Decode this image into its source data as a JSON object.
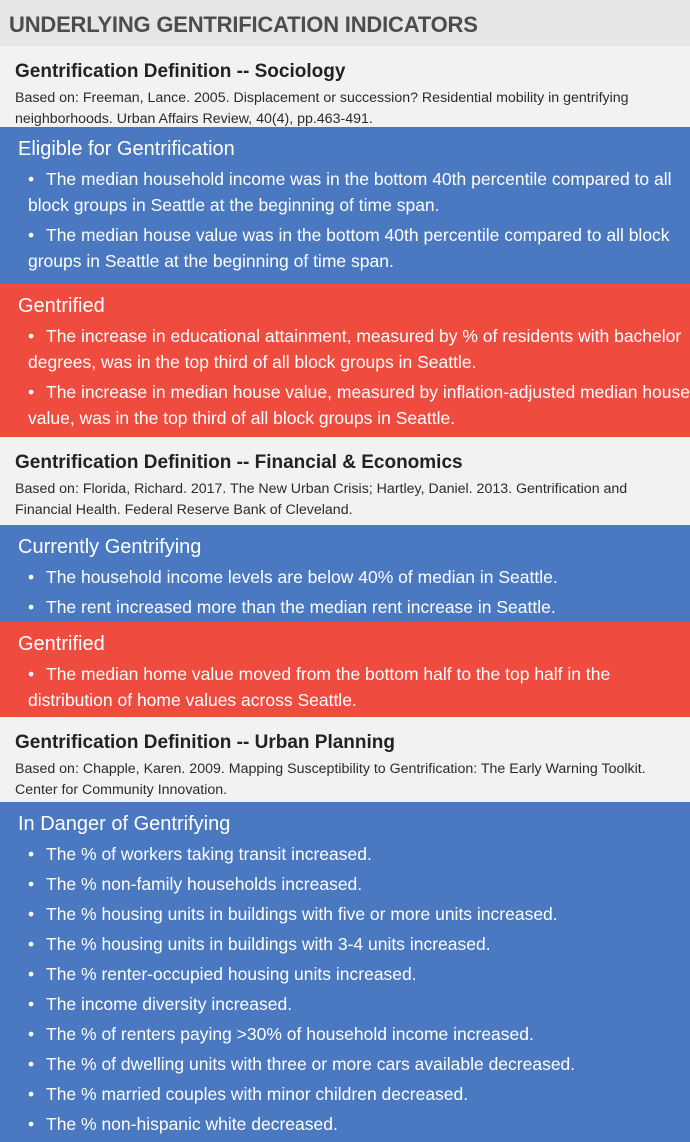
{
  "title": "UNDERLYING GENTRIFICATION INDICATORS",
  "colors": {
    "header_band": "#e6e6e6",
    "definition_band": "#f2f2f2",
    "blue_panel": "#4a79c2",
    "red_panel": "#ef4b3f"
  },
  "definitions": [
    {
      "title": "Gentrification Definition -- Sociology",
      "source": "Based on: Freeman, Lance. 2005. Displacement or succession? Residential mobility in gentrifying neighborhoods. Urban Affairs Review, 40(4), pp.463-491.",
      "panels": [
        {
          "title": "Eligible for Gentrification",
          "color": "blue",
          "bullet": "•",
          "items": [
            "The median household income was in the bottom 40th percentile compared to all block groups in Seattle at the beginning of time span.",
            "The median house value was in the bottom 40th percentile compared to all block groups in Seattle at the beginning of time span."
          ]
        },
        {
          "title": "Gentrified",
          "color": "red",
          "bullet": "•",
          "items": [
            "The increase in educational attainment, measured by % of residents with bachelor degrees, was in the top third of all block groups in Seattle.",
            "The increase in median house value, measured by inflation-adjusted median house value, was in the top third of all block groups in Seattle."
          ]
        }
      ]
    },
    {
      "title": "Gentrification Definition -- Financial & Economics",
      "source": "Based on: Florida, Richard. 2017. The New Urban Crisis; Hartley, Daniel. 2013. Gentrification and Financial Health. Federal Reserve Bank of Cleveland.",
      "panels": [
        {
          "title": "Currently Gentrifying",
          "color": "blue",
          "bullet": "•",
          "items": [
            "The household income levels are below 40% of median in Seattle.",
            "The rent increased more than the median rent increase in Seattle."
          ]
        },
        {
          "title": "Gentrified",
          "color": "red",
          "bullet": "•",
          "items": [
            "The median home value moved from the bottom half to the top half in the distribution of home values across Seattle."
          ]
        }
      ]
    },
    {
      "title": "Gentrification Definition -- Urban Planning",
      "source": "Based on: Chapple, Karen. 2009. Mapping Susceptibility to Gentrification: The Early Warning Toolkit. Center for Community Innovation.",
      "panels": [
        {
          "title": "In Danger of Gentrifying",
          "color": "blue",
          "bullet": "•",
          "items": [
            "The % of workers taking transit increased.",
            "The % non-family households increased.",
            "The % housing units in buildings with five or more units increased.",
            "The % housing units in buildings with 3-4 units increased.",
            "The % renter-occupied housing units increased.",
            "The income diversity increased.",
            "The % of renters paying >30% of household income increased.",
            "The % of dwelling units with three or more cars available decreased.",
            "The % married couples with minor children decreased.",
            "The % non-hispanic white decreased."
          ]
        }
      ]
    }
  ]
}
